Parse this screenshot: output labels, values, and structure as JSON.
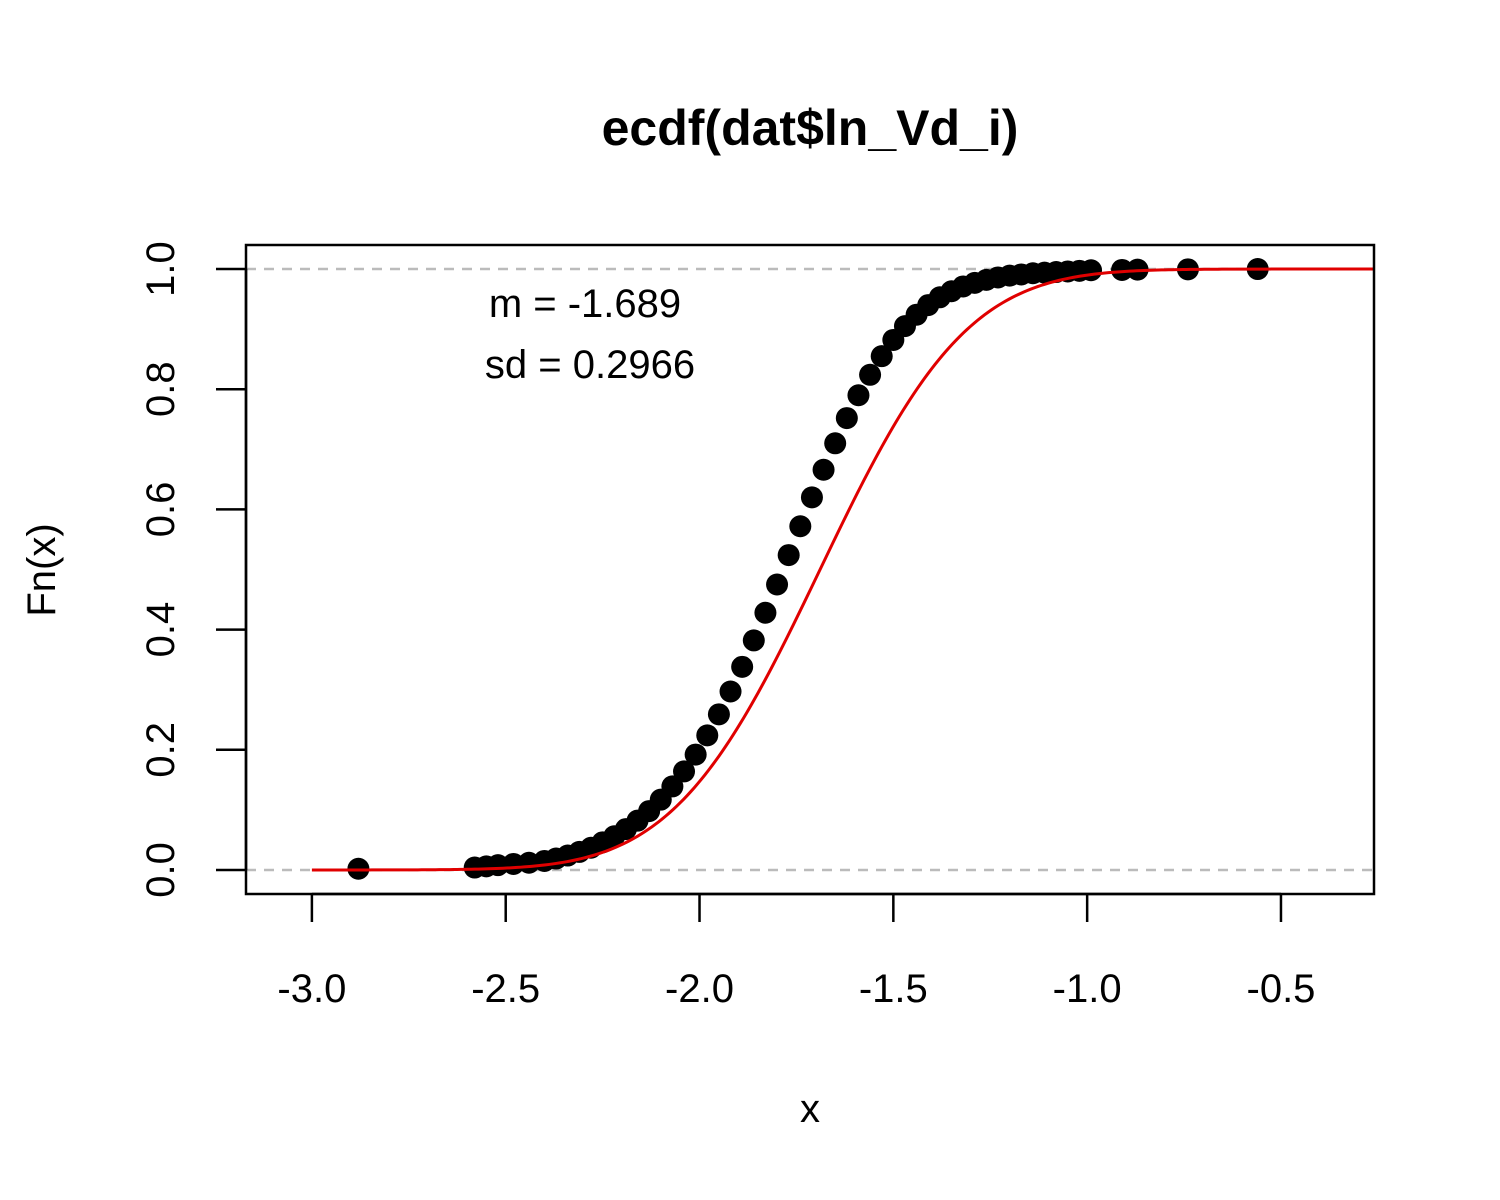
{
  "chart_data": {
    "type": "scatter",
    "title": "ecdf(dat$ln_Vd_i)",
    "xlabel": "x",
    "ylabel": "Fn(x)",
    "xlim": [
      -3.17,
      -0.26
    ],
    "ylim": [
      -0.04,
      1.04
    ],
    "x_ticks": [
      "-3.0",
      "-2.5",
      "-2.0",
      "-1.5",
      "-1.0",
      "-0.5"
    ],
    "x_tick_values": [
      -3.0,
      -2.5,
      -2.0,
      -1.5,
      -1.0,
      -0.5
    ],
    "y_ticks": [
      "0.0",
      "0.2",
      "0.4",
      "0.6",
      "0.8",
      "1.0"
    ],
    "y_tick_values": [
      0.0,
      0.2,
      0.4,
      0.6,
      0.8,
      1.0
    ],
    "reference_lines": [
      0,
      1
    ],
    "annotations": {
      "mean": "m = -1.689",
      "sd": "sd = 0.2966"
    },
    "fit": {
      "distribution": "normal",
      "mean": -1.689,
      "sd": 0.2966,
      "color": "#e00000"
    },
    "points": {
      "color": "#000000",
      "description": "empirical CDF step values",
      "x": [
        -2.88,
        -2.58,
        -2.55,
        -2.52,
        -2.48,
        -2.44,
        -2.4,
        -2.37,
        -2.34,
        -2.31,
        -2.28,
        -2.25,
        -2.22,
        -2.19,
        -2.16,
        -2.13,
        -2.1,
        -2.07,
        -2.04,
        -2.01,
        -1.98,
        -1.95,
        -1.92,
        -1.89,
        -1.86,
        -1.83,
        -1.8,
        -1.77,
        -1.74,
        -1.71,
        -1.68,
        -1.65,
        -1.62,
        -1.59,
        -1.56,
        -1.53,
        -1.5,
        -1.47,
        -1.44,
        -1.41,
        -1.38,
        -1.35,
        -1.32,
        -1.29,
        -1.26,
        -1.23,
        -1.2,
        -1.17,
        -1.14,
        -1.11,
        -1.08,
        -1.05,
        -1.02,
        -0.99,
        -0.91,
        -0.87,
        -0.74,
        -0.56
      ],
      "y": [
        0.002,
        0.004,
        0.006,
        0.008,
        0.01,
        0.012,
        0.015,
        0.019,
        0.024,
        0.03,
        0.037,
        0.046,
        0.056,
        0.068,
        0.082,
        0.098,
        0.117,
        0.139,
        0.164,
        0.192,
        0.224,
        0.259,
        0.297,
        0.338,
        0.382,
        0.428,
        0.475,
        0.524,
        0.572,
        0.62,
        0.666,
        0.71,
        0.752,
        0.79,
        0.824,
        0.855,
        0.882,
        0.905,
        0.924,
        0.94,
        0.953,
        0.963,
        0.971,
        0.977,
        0.982,
        0.986,
        0.989,
        0.991,
        0.993,
        0.994,
        0.995,
        0.996,
        0.997,
        0.998,
        0.9985,
        0.999,
        0.9995,
        1.0
      ]
    }
  }
}
